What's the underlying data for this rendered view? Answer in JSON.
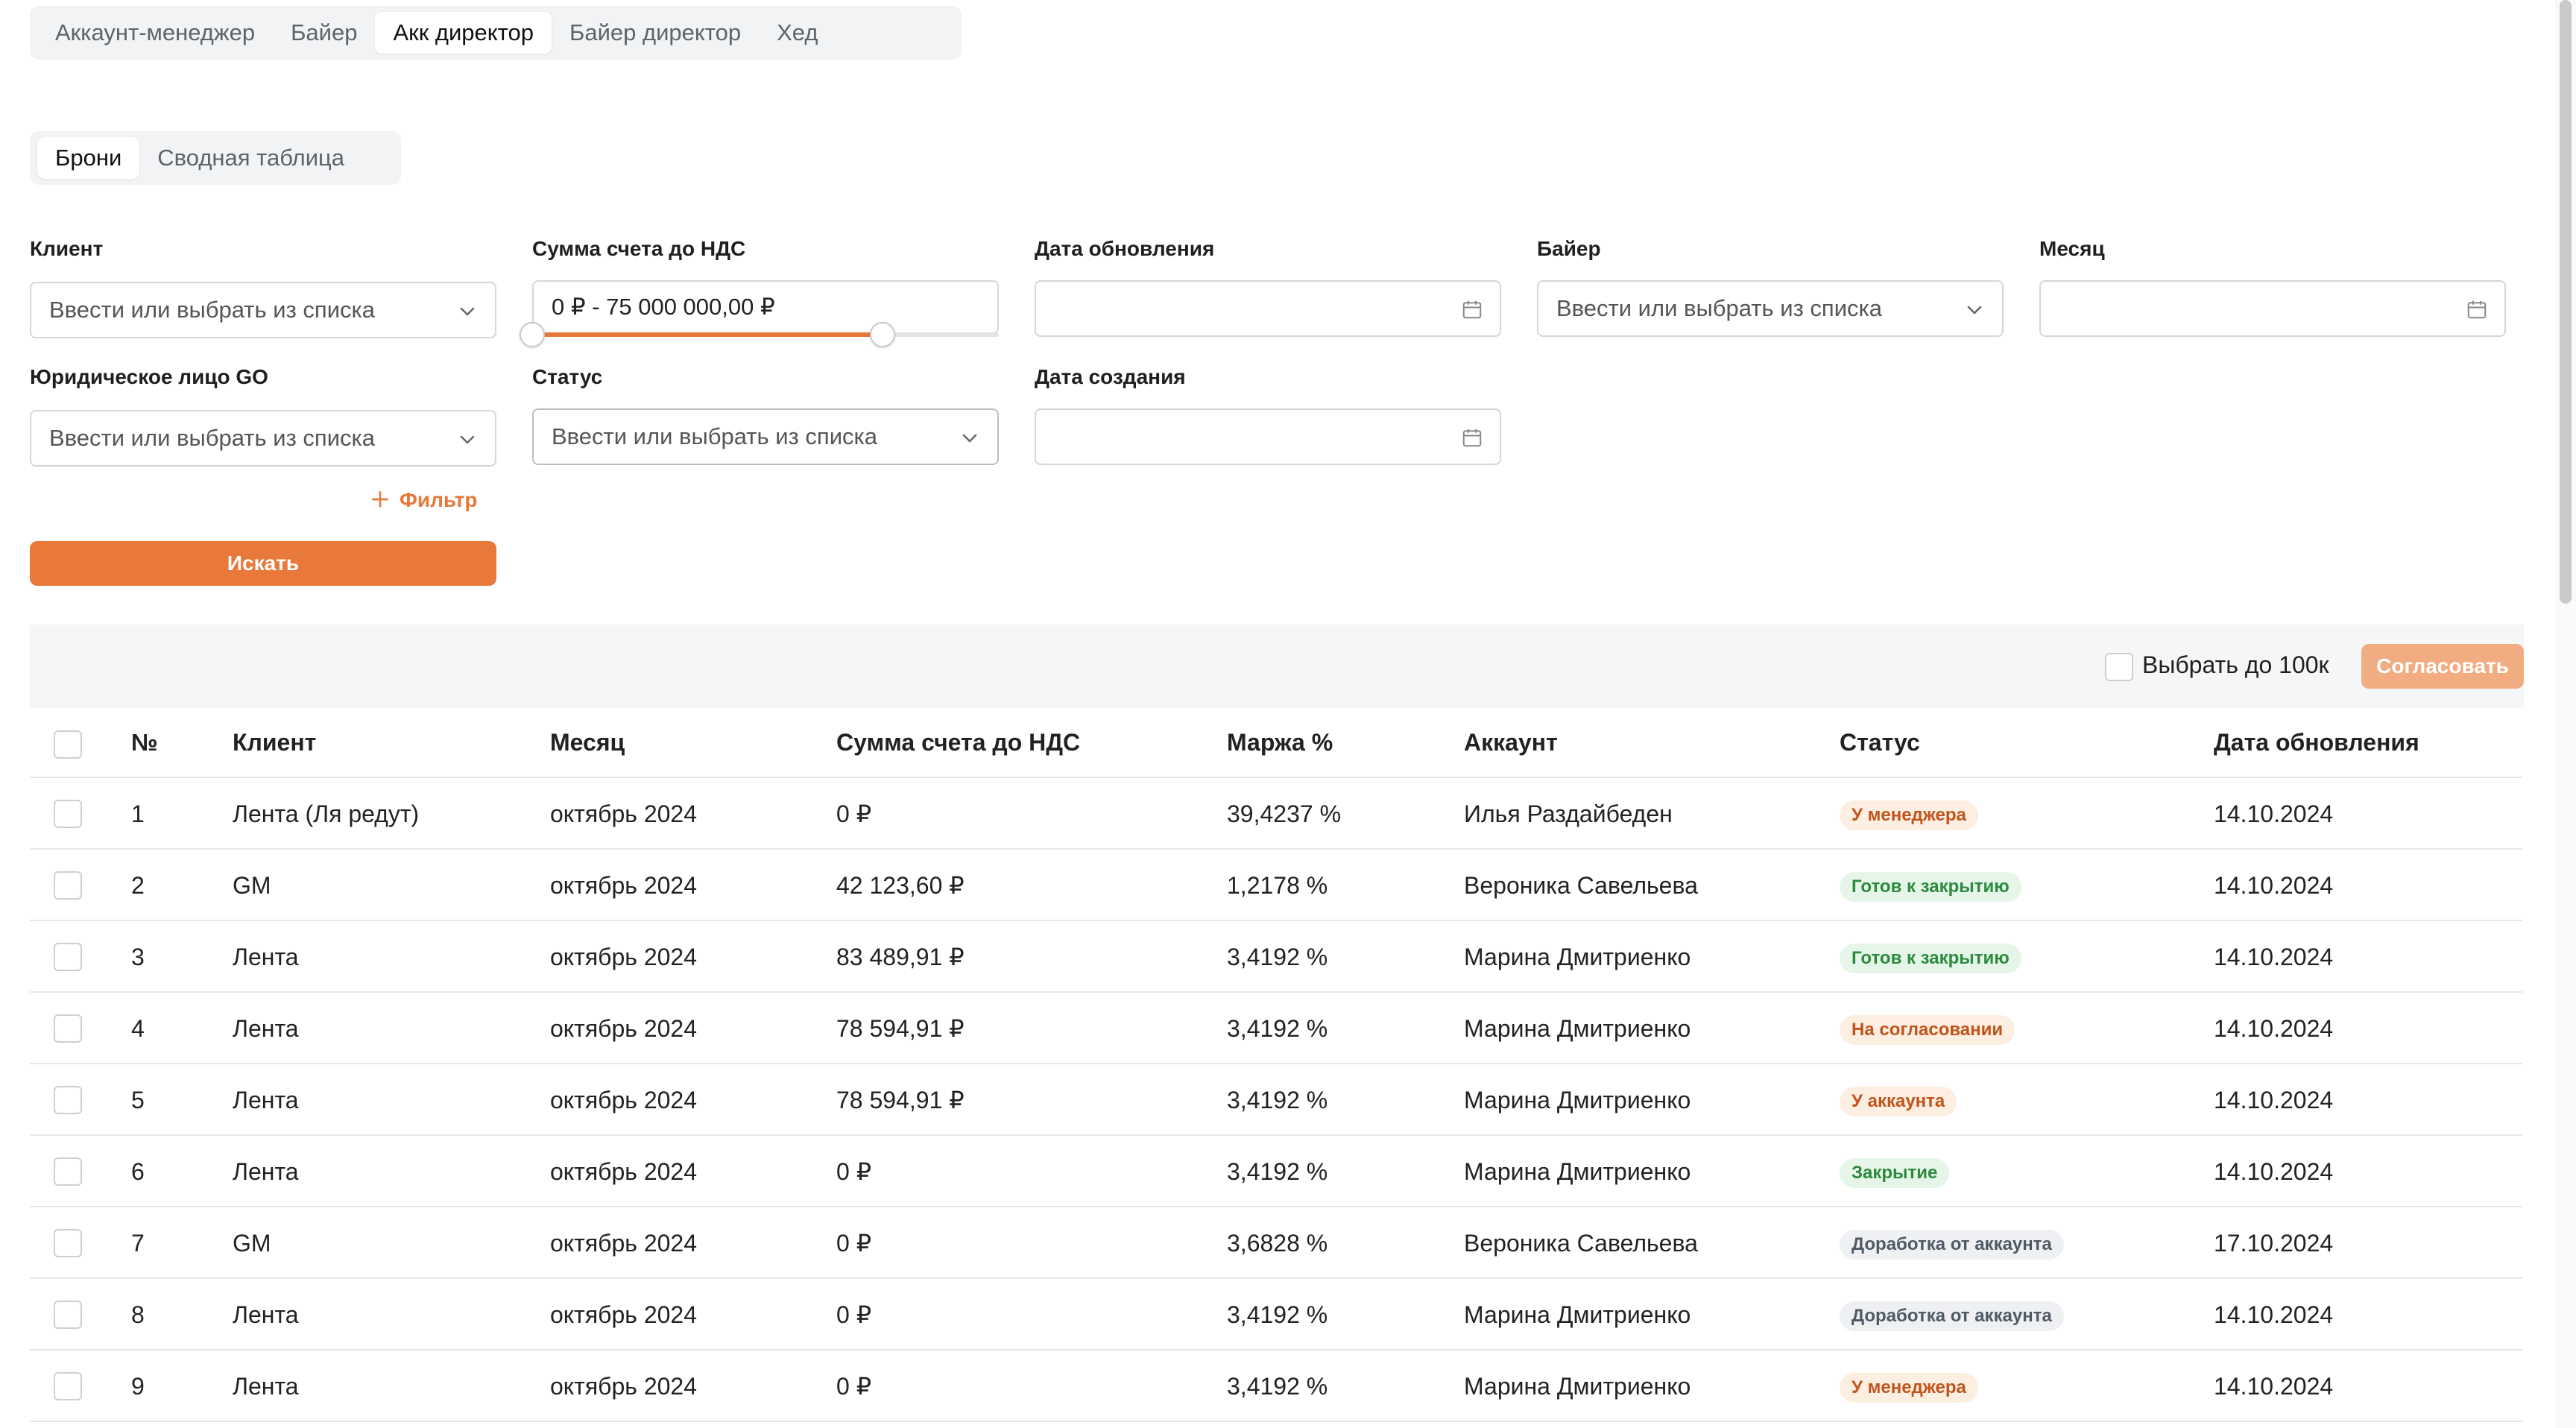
{
  "role_tabs": [
    "Аккаунт-менеджер",
    "Байер",
    "Акк директор",
    "Байер директор",
    "Хед"
  ],
  "active_role_tab": "Акк директор",
  "view_tabs": [
    "Брони",
    "Сводная таблица"
  ],
  "active_view_tab": "Брони",
  "filters": {
    "client": {
      "label": "Клиент",
      "placeholder": "Ввести или выбрать из списка"
    },
    "sum": {
      "label": "Сумма счета до НДС",
      "value": "0 ₽ - 75 000 000,00 ₽",
      "range_fraction": [
        0,
        0.75
      ]
    },
    "update_date": {
      "label": "Дата обновления"
    },
    "buyer": {
      "label": "Байер",
      "placeholder": "Ввести или выбрать из списка"
    },
    "month": {
      "label": "Месяц"
    },
    "legal": {
      "label": "Юридическое лицо GO",
      "placeholder": "Ввести или выбрать из списка"
    },
    "status": {
      "label": "Статус",
      "placeholder": "Ввести или выбрать из списка"
    },
    "create_date": {
      "label": "Дата создания"
    },
    "add_filter": "Фильтр",
    "search_button": "Искать"
  },
  "toolbar": {
    "select_label": "Выбрать до 100к",
    "approve_button": "Согласовать"
  },
  "table": {
    "columns": [
      "№",
      "Клиент",
      "Месяц",
      "Сумма счета до НДС",
      "Маржа %",
      "Аккаунт",
      "Статус",
      "Дата обновления"
    ],
    "rows": [
      {
        "n": "1",
        "client": "Лента (Ля редут)",
        "month": "октябрь 2024",
        "sum": "0 ₽",
        "margin": "39,4237 %",
        "account": "Илья Раздайбеден",
        "status": "У менеджера",
        "status_color": "orange",
        "date": "14.10.2024"
      },
      {
        "n": "2",
        "client": "GM",
        "month": "октябрь 2024",
        "sum": "42 123,60 ₽",
        "margin": "1,2178 %",
        "account": "Вероника Савельева",
        "status": "Готов к закрытию",
        "status_color": "green",
        "date": "14.10.2024"
      },
      {
        "n": "3",
        "client": "Лента",
        "month": "октябрь 2024",
        "sum": "83 489,91 ₽",
        "margin": "3,4192 %",
        "account": "Марина Дмитриенко",
        "status": "Готов к закрытию",
        "status_color": "green",
        "date": "14.10.2024"
      },
      {
        "n": "4",
        "client": "Лента",
        "month": "октябрь 2024",
        "sum": "78 594,91 ₽",
        "margin": "3,4192 %",
        "account": "Марина Дмитриенко",
        "status": "На согласовании",
        "status_color": "orange",
        "date": "14.10.2024"
      },
      {
        "n": "5",
        "client": "Лента",
        "month": "октябрь 2024",
        "sum": "78 594,91 ₽",
        "margin": "3,4192 %",
        "account": "Марина Дмитриенко",
        "status": "У аккаунта",
        "status_color": "orange",
        "date": "14.10.2024"
      },
      {
        "n": "6",
        "client": "Лента",
        "month": "октябрь 2024",
        "sum": "0 ₽",
        "margin": "3,4192 %",
        "account": "Марина Дмитриенко",
        "status": "Закрытие",
        "status_color": "green",
        "date": "14.10.2024"
      },
      {
        "n": "7",
        "client": "GM",
        "month": "октябрь 2024",
        "sum": "0 ₽",
        "margin": "3,6828 %",
        "account": "Вероника Савельева",
        "status": "Доработка от аккаунта",
        "status_color": "grey",
        "date": "17.10.2024"
      },
      {
        "n": "8",
        "client": "Лента",
        "month": "октябрь 2024",
        "sum": "0 ₽",
        "margin": "3,4192 %",
        "account": "Марина Дмитриенко",
        "status": "Доработка от аккаунта",
        "status_color": "grey",
        "date": "14.10.2024"
      },
      {
        "n": "9",
        "client": "Лента",
        "month": "октябрь 2024",
        "sum": "0 ₽",
        "margin": "3,4192 %",
        "account": "Марина Дмитриенко",
        "status": "У менеджера",
        "status_color": "orange",
        "date": "14.10.2024"
      }
    ]
  },
  "colors": {
    "accent": "#e8793a",
    "accent_disabled": "#f2ac82"
  }
}
